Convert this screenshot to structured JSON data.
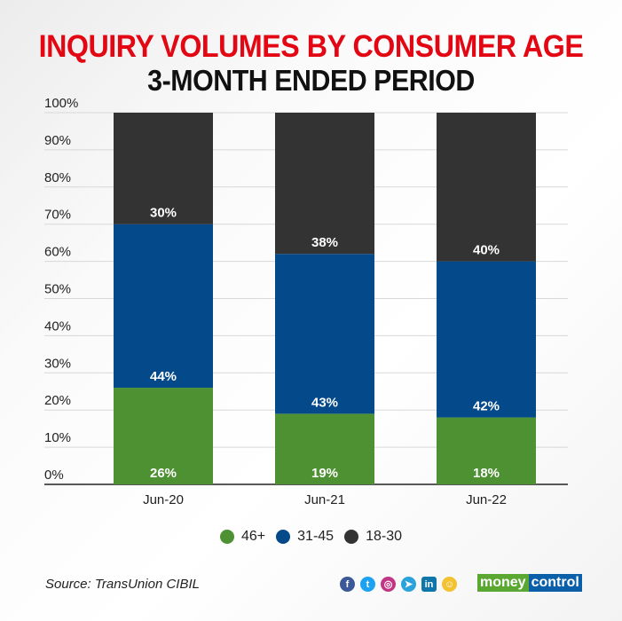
{
  "chart_data": {
    "type": "bar",
    "stacked": true,
    "title": "INQUIRY VOLUMES BY CONSUMER AGE",
    "subtitle": "3-MONTH ENDED PERIOD",
    "categories": [
      "Jun-20",
      "Jun-21",
      "Jun-22"
    ],
    "series": [
      {
        "name": "46+",
        "values": [
          26,
          19,
          18
        ],
        "color": "#4e9133"
      },
      {
        "name": "31-45",
        "values": [
          44,
          43,
          42
        ],
        "color": "#044a8a"
      },
      {
        "name": "18-30",
        "values": [
          30,
          38,
          40
        ],
        "color": "#333333"
      }
    ],
    "ylim": [
      0,
      100
    ],
    "yticks": [
      "0%",
      "10%",
      "20%",
      "30%",
      "40%",
      "50%",
      "60%",
      "70%",
      "80%",
      "90%",
      "100%"
    ],
    "grid": true,
    "legend": "bottom"
  },
  "source": "Source: TransUnion CIBIL",
  "social_icons": [
    "facebook-icon",
    "twitter-icon",
    "instagram-icon",
    "telegram-icon",
    "linkedin-icon",
    "snapchat-icon"
  ],
  "logo": {
    "part1": "money",
    "part2": "control"
  }
}
